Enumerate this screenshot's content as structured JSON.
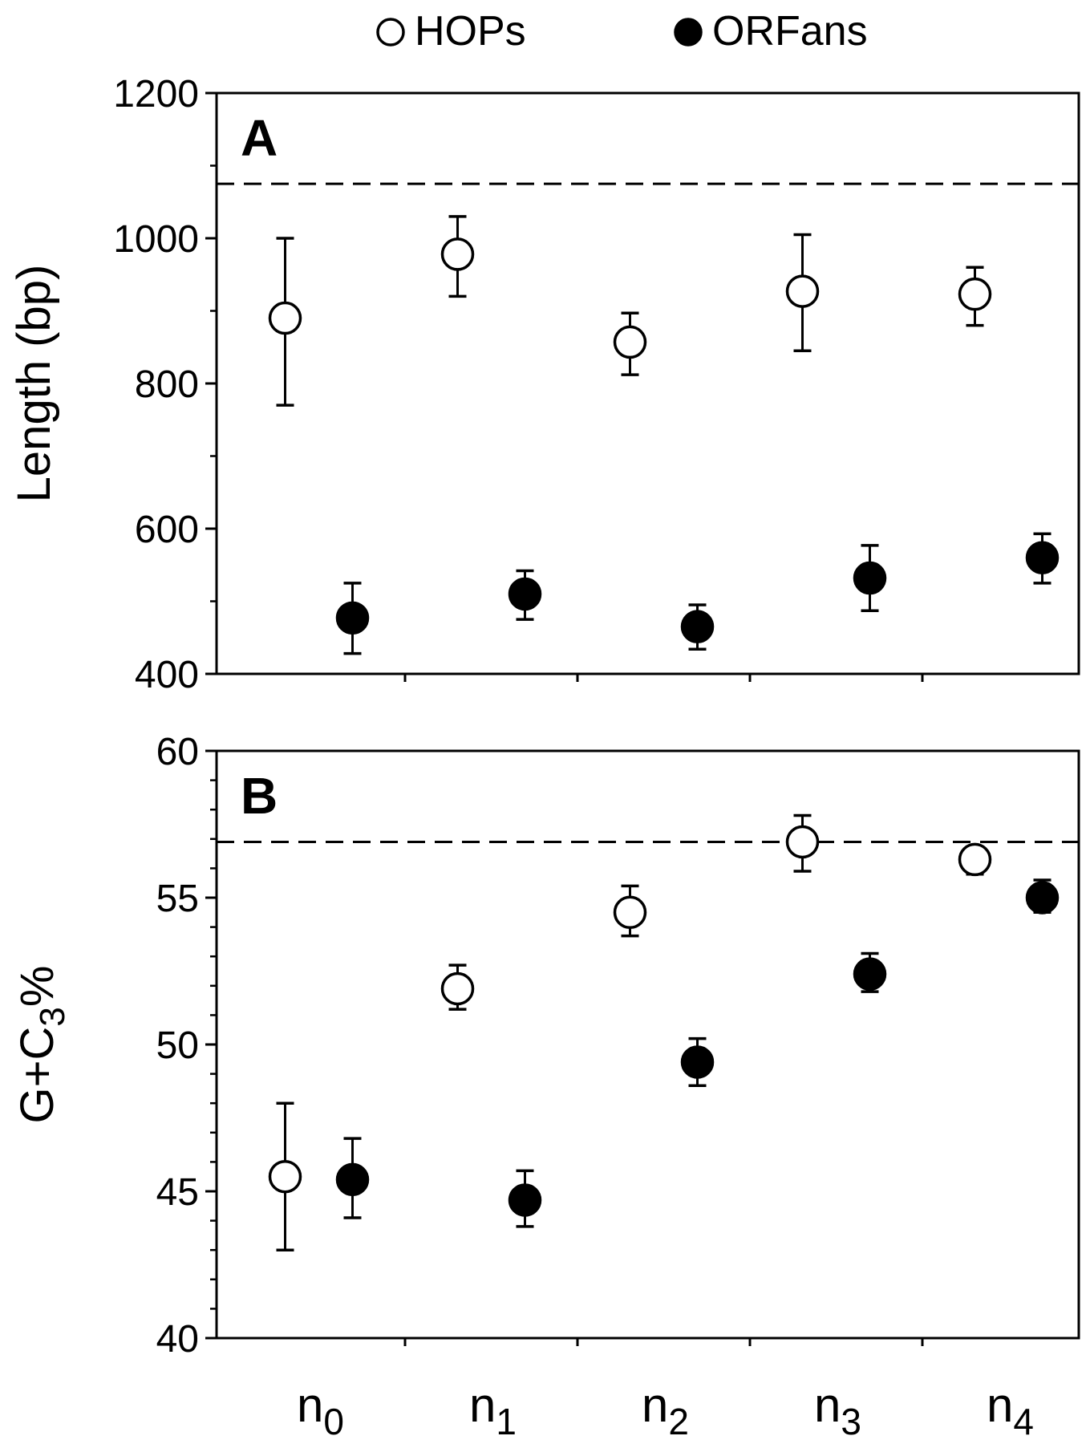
{
  "legend": {
    "placement": "top-center",
    "entries": [
      {
        "label": "HOPs",
        "marker": "open-circle"
      },
      {
        "label": "ORFans",
        "marker": "filled-circle"
      }
    ]
  },
  "colors": {
    "ink": "#000000",
    "background": "#ffffff",
    "open_fill": "#ffffff",
    "filled_fill": "#000000"
  },
  "x_axis": {
    "ticks": [
      {
        "base": "n",
        "sub": "0"
      },
      {
        "base": "n",
        "sub": "1"
      },
      {
        "base": "n",
        "sub": "2"
      },
      {
        "base": "n",
        "sub": "3"
      },
      {
        "base": "n",
        "sub": "4"
      }
    ]
  },
  "chart_data": [
    {
      "type": "scatter",
      "panel_label": "A",
      "ylabel": "Length (bp)",
      "ylabel_parts": [
        {
          "text": "Length (bp)",
          "sub": false
        }
      ],
      "ylim": [
        400,
        1200
      ],
      "yticks": [
        400,
        600,
        800,
        1000,
        1200
      ],
      "yminor": [
        500,
        700,
        900,
        1100
      ],
      "grid": false,
      "reference_line": {
        "y": 1075,
        "style": "dashed"
      },
      "categories": [
        "n0",
        "n1",
        "n2",
        "n3",
        "n4"
      ],
      "series": [
        {
          "name": "HOPs",
          "marker": "open",
          "values": [
            890,
            978,
            857,
            927,
            923
          ],
          "err_low": [
            770,
            920,
            812,
            845,
            880
          ],
          "err_high": [
            1000,
            1030,
            897,
            1005,
            960
          ]
        },
        {
          "name": "ORFans",
          "marker": "filled",
          "values": [
            477,
            510,
            465,
            532,
            560
          ],
          "err_low": [
            428,
            475,
            434,
            487,
            525
          ],
          "err_high": [
            525,
            542,
            495,
            577,
            593
          ]
        }
      ]
    },
    {
      "type": "scatter",
      "panel_label": "B",
      "ylabel": "G+C3%",
      "ylabel_parts": [
        {
          "text": "G+C",
          "sub": false
        },
        {
          "text": "3",
          "sub": true
        },
        {
          "text": "%",
          "sub": false
        }
      ],
      "ylim": [
        40,
        60
      ],
      "yticks": [
        40,
        45,
        50,
        55,
        60
      ],
      "yminor": [
        41,
        42,
        43,
        44,
        46,
        47,
        48,
        49,
        51,
        52,
        53,
        54,
        56,
        57,
        58,
        59
      ],
      "grid": false,
      "reference_line": {
        "y": 56.9,
        "style": "dashed"
      },
      "categories": [
        "n0",
        "n1",
        "n2",
        "n3",
        "n4"
      ],
      "series": [
        {
          "name": "HOPs",
          "marker": "open",
          "values": [
            45.5,
            51.9,
            54.5,
            56.9,
            56.3
          ],
          "err_low": [
            43.0,
            51.2,
            53.7,
            55.9,
            55.8
          ],
          "err_high": [
            48.0,
            52.7,
            55.4,
            57.8,
            56.7
          ]
        },
        {
          "name": "ORFans",
          "marker": "filled",
          "values": [
            45.4,
            44.7,
            49.4,
            52.4,
            55.0
          ],
          "err_low": [
            44.1,
            43.8,
            48.6,
            51.8,
            54.5
          ],
          "err_high": [
            46.8,
            45.7,
            50.2,
            53.1,
            55.6
          ]
        }
      ]
    }
  ]
}
